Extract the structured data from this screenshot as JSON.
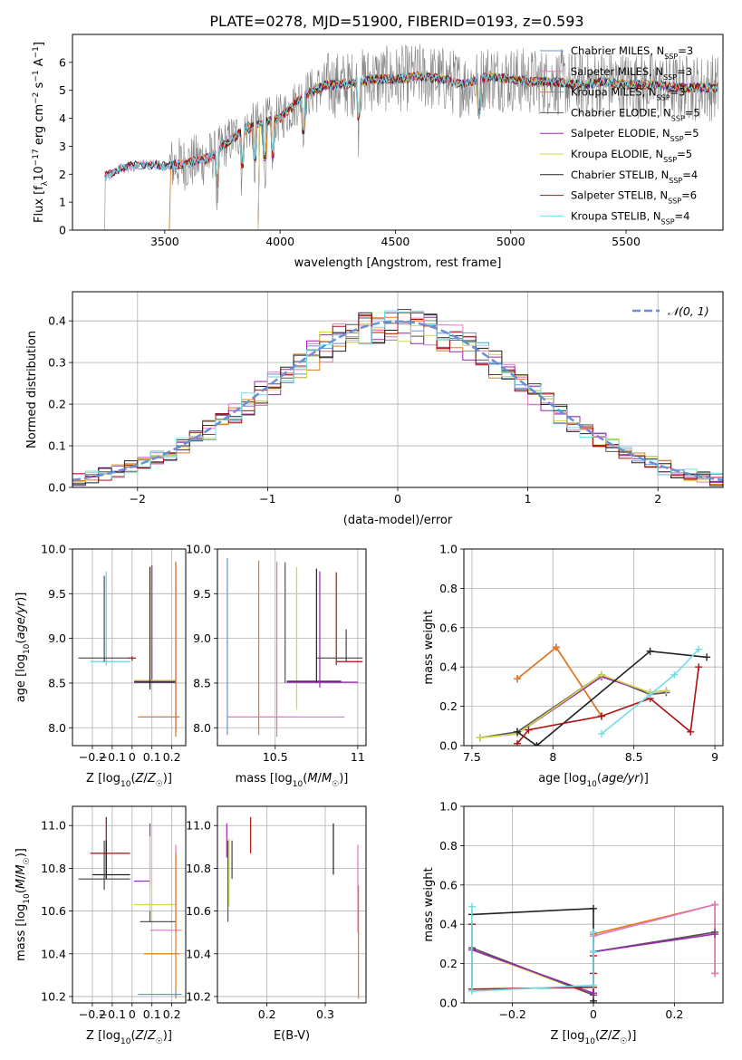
{
  "page_title": "PLATE=0278, MJD=51900, FIBERID=0193, z=0.593",
  "series_colors": [
    "#6a8fd8",
    "#e377c2",
    "#e07b1c",
    "#555555",
    "#9a27b0",
    "#cfd84a",
    "#222222",
    "#b01010",
    "#73dcea"
  ],
  "legend_entries": [
    {
      "base": "Chabrier MILES, N",
      "sub": "SSP",
      "suffix": "=3"
    },
    {
      "base": "Salpeter MILES, N",
      "sub": "SSP",
      "suffix": "=3"
    },
    {
      "base": "Kroupa MILES, N",
      "sub": "SSP",
      "suffix": "=3"
    },
    {
      "base": "Chabrier ELODIE, N",
      "sub": "SSP",
      "suffix": "=5"
    },
    {
      "base": "Salpeter ELODIE, N",
      "sub": "SSP",
      "suffix": "=5"
    },
    {
      "base": "Kroupa ELODIE, N",
      "sub": "SSP",
      "suffix": "=5"
    },
    {
      "base": "Chabrier STELIB, N",
      "sub": "SSP",
      "suffix": "=4"
    },
    {
      "base": "Salpeter STELIB, N",
      "sub": "SSP",
      "suffix": "=6"
    },
    {
      "base": "Kroupa STELIB, N",
      "sub": "SSP",
      "suffix": "=4"
    }
  ],
  "chart_data": [
    {
      "id": "spectrum",
      "type": "line",
      "xlabel": "wavelength [Angstrom, rest frame]",
      "ylabel": "Flux [f_λ 10^-17 erg cm^-2 s^-1 A^-1]",
      "xlim": [
        3100,
        5920
      ],
      "ylim": [
        0,
        7
      ],
      "xticks": [
        3500,
        4000,
        4500,
        5000,
        5500
      ],
      "yticks": [
        0,
        1,
        2,
        3,
        4,
        5,
        6
      ],
      "grid": false,
      "legend": "upper right",
      "approx_continuum": [
        [
          3240,
          1.9
        ],
        [
          3300,
          2.2
        ],
        [
          3400,
          2.35
        ],
        [
          3500,
          2.3
        ],
        [
          3600,
          2.4
        ],
        [
          3700,
          2.6
        ],
        [
          3780,
          3.2
        ],
        [
          3850,
          3.6
        ],
        [
          3950,
          3.9
        ],
        [
          4000,
          4.0
        ],
        [
          4100,
          4.8
        ],
        [
          4200,
          5.2
        ],
        [
          4300,
          5.2
        ],
        [
          4400,
          5.4
        ],
        [
          4500,
          5.4
        ],
        [
          4600,
          5.5
        ],
        [
          4700,
          5.4
        ],
        [
          4800,
          5.2
        ],
        [
          4900,
          5.5
        ],
        [
          5000,
          5.4
        ],
        [
          5100,
          5.3
        ],
        [
          5200,
          5.3
        ],
        [
          5300,
          5.2
        ],
        [
          5400,
          5.3
        ],
        [
          5500,
          5.2
        ],
        [
          5600,
          5.2
        ],
        [
          5700,
          5.1
        ],
        [
          5800,
          5.1
        ]
      ]
    },
    {
      "id": "residuals",
      "type": "histogram",
      "xlabel": "(data-model)/error",
      "ylabel": "Normed distribution",
      "xlim": [
        -2.5,
        2.5
      ],
      "ylim": [
        0,
        0.47
      ],
      "xticks": [
        -2,
        -1,
        0,
        1,
        2
      ],
      "yticks": [
        0.0,
        0.1,
        0.2,
        0.3,
        0.4
      ],
      "grid": true,
      "legend": "upper right",
      "gaussian_label": "N(0,1)",
      "bins": 50
    },
    {
      "id": "age_vs_Z",
      "type": "errorbar",
      "xlabel": "Z [log10(Z/Z☉)]",
      "ylabel": "age  [log10(age/yr)]",
      "xlim": [
        -0.3,
        0.27
      ],
      "ylim": [
        7.8,
        10.0
      ],
      "xticks": [
        -0.2,
        -0.1,
        0.0,
        0.1,
        0.2
      ],
      "yticks": [
        8.0,
        8.5,
        9.0,
        9.5,
        10.0
      ],
      "grid": true,
      "points": [
        {
          "s": 8,
          "x": -0.13,
          "xlo": -0.21,
          "xhi": -0.01,
          "y": 8.74,
          "ylo": 8.7,
          "yhi": 9.74
        },
        {
          "s": 8,
          "x": -0.13,
          "xlo": -0.21,
          "xhi": -0.01,
          "y": 8.74,
          "ylo": 8.7,
          "yhi": 9.75
        },
        {
          "s": 9,
          "x": -0.14,
          "xlo": -0.27,
          "xhi": -0.01,
          "y": 8.78,
          "ylo": 8.74,
          "yhi": 9.7
        },
        {
          "s": 7,
          "x": 0.0,
          "xlo": -0.02,
          "xhi": 0.02,
          "y": 8.78,
          "ylo": 8.75,
          "yhi": 8.8
        },
        {
          "s": 4,
          "x": 0.1,
          "xlo": 0.01,
          "xhi": 0.22,
          "y": 8.52,
          "ylo": 8.5,
          "yhi": 9.82
        },
        {
          "s": 5,
          "x": 0.09,
          "xlo": 0.01,
          "xhi": 0.22,
          "y": 8.53,
          "ylo": 8.45,
          "yhi": 9.8
        },
        {
          "s": 6,
          "x": 0.09,
          "xlo": 0.01,
          "xhi": 0.22,
          "y": 8.51,
          "ylo": 8.43,
          "yhi": 9.8
        },
        {
          "s": 0,
          "x": 0.22,
          "xlo": 0.03,
          "xhi": 0.24,
          "y": 8.12,
          "ylo": 7.95,
          "yhi": 9.83
        },
        {
          "s": 1,
          "x": 0.22,
          "xlo": 0.03,
          "xhi": 0.24,
          "y": 8.12,
          "ylo": 7.95,
          "yhi": 9.85
        },
        {
          "s": 2,
          "x": 0.22,
          "xlo": 0.03,
          "xhi": 0.24,
          "y": 8.12,
          "ylo": 7.9,
          "yhi": 9.86
        }
      ]
    },
    {
      "id": "age_vs_mass",
      "type": "errorbar",
      "xlabel": "mass [log10(M/M☉)]",
      "ylabel": "",
      "xlim": [
        10.15,
        11.05
      ],
      "ylim": [
        7.8,
        10.0
      ],
      "xticks": [
        10.5,
        11.0
      ],
      "yticks": [
        8.0,
        8.5,
        9.0,
        9.5,
        10.0
      ],
      "grid": true,
      "points": [
        {
          "s": 0,
          "x": 10.21,
          "xlo": 10.21,
          "xhi": 10.21,
          "y": 8.12,
          "ylo": 7.92,
          "yhi": 9.9
        },
        {
          "s": 2,
          "x": 10.4,
          "xlo": 10.21,
          "xhi": 10.63,
          "y": 8.12,
          "ylo": 7.92,
          "yhi": 9.87
        },
        {
          "s": 1,
          "x": 10.51,
          "xlo": 10.21,
          "xhi": 10.92,
          "y": 8.12,
          "ylo": 7.9,
          "yhi": 9.86
        },
        {
          "s": 3,
          "x": 10.56,
          "xlo": 10.56,
          "xhi": 10.56,
          "y": 9.0,
          "ylo": 8.5,
          "yhi": 9.85
        },
        {
          "s": 5,
          "x": 10.63,
          "xlo": 10.63,
          "xhi": 10.63,
          "y": 9.0,
          "ylo": 8.2,
          "yhi": 9.8
        },
        {
          "s": 6,
          "x": 10.75,
          "xlo": 10.57,
          "xhi": 10.9,
          "y": 8.52,
          "ylo": 8.5,
          "yhi": 9.78
        },
        {
          "s": 4,
          "x": 10.77,
          "xlo": 10.57,
          "xhi": 11.0,
          "y": 8.51,
          "ylo": 8.45,
          "yhi": 9.75
        },
        {
          "s": 7,
          "x": 10.87,
          "xlo": 10.87,
          "xhi": 11.03,
          "y": 8.74,
          "ylo": 8.7,
          "yhi": 9.74
        },
        {
          "s": 9,
          "x": 10.93,
          "xlo": 10.75,
          "xhi": 11.03,
          "y": 8.78,
          "ylo": 8.74,
          "yhi": 9.1
        }
      ]
    },
    {
      "id": "massweight_vs_age",
      "type": "line",
      "xlabel": "age  [log10(age/yr)]",
      "ylabel": "mass weight",
      "xlim": [
        7.45,
        9.05
      ],
      "ylim": [
        0,
        1.0
      ],
      "xticks": [
        7.5,
        8.0,
        8.5,
        9.0
      ],
      "yticks": [
        0.0,
        0.2,
        0.4,
        0.6,
        0.8,
        1.0
      ],
      "grid": true,
      "series": [
        {
          "s": 0,
          "x": [
            7.78,
            8.02,
            8.3
          ],
          "y": [
            0.34,
            0.5,
            0.15
          ]
        },
        {
          "s": 1,
          "x": [
            7.78,
            8.02,
            8.3
          ],
          "y": [
            0.34,
            0.5,
            0.15
          ]
        },
        {
          "s": 2,
          "x": [
            7.78,
            8.02,
            8.3
          ],
          "y": [
            0.34,
            0.5,
            0.15
          ]
        },
        {
          "s": 3,
          "x": [
            7.55,
            7.78,
            8.3,
            8.6,
            8.7
          ],
          "y": [
            0.04,
            0.07,
            0.36,
            0.26,
            0.27
          ]
        },
        {
          "s": 4,
          "x": [
            7.55,
            7.78,
            8.3,
            8.6,
            8.7
          ],
          "y": [
            0.04,
            0.06,
            0.35,
            0.27,
            0.28
          ]
        },
        {
          "s": 5,
          "x": [
            7.55,
            7.78,
            8.3,
            8.6,
            8.7
          ],
          "y": [
            0.04,
            0.06,
            0.36,
            0.27,
            0.28
          ]
        },
        {
          "s": 6,
          "x": [
            7.78,
            7.9,
            8.6,
            8.95
          ],
          "y": [
            0.07,
            0.0,
            0.48,
            0.45
          ]
        },
        {
          "s": 7,
          "x": [
            7.78,
            7.85,
            8.3,
            8.6,
            8.85,
            8.9
          ],
          "y": [
            0.01,
            0.08,
            0.15,
            0.24,
            0.07,
            0.4
          ]
        },
        {
          "s": 8,
          "x": [
            8.3,
            8.6,
            8.75,
            8.9
          ],
          "y": [
            0.06,
            0.26,
            0.36,
            0.49
          ]
        }
      ]
    },
    {
      "id": "mass_vs_Z",
      "type": "errorbar",
      "xlabel": "Z [log10(Z/Z☉)]",
      "ylabel": "mass [log10(M/M☉)]",
      "xlim": [
        -0.3,
        0.27
      ],
      "ylim": [
        10.17,
        11.09
      ],
      "xticks": [
        -0.2,
        -0.1,
        0.0,
        0.1,
        0.2
      ],
      "yticks": [
        10.2,
        10.4,
        10.6,
        10.8,
        11.0
      ],
      "grid": true,
      "points": [
        {
          "s": 8,
          "x": -0.13,
          "xlo": -0.21,
          "xhi": -0.01,
          "y": 10.87,
          "ylo": 10.75,
          "yhi": 11.04
        },
        {
          "s": 7,
          "x": -0.13,
          "xlo": -0.21,
          "xhi": -0.01,
          "y": 10.87,
          "ylo": 10.75,
          "yhi": 11.04
        },
        {
          "s": 6,
          "x": -0.13,
          "xlo": -0.2,
          "xhi": -0.01,
          "y": 10.77,
          "ylo": 10.75,
          "yhi": 10.93
        },
        {
          "s": 9,
          "x": -0.14,
          "xlo": -0.27,
          "xhi": -0.01,
          "y": 10.75,
          "ylo": 10.7,
          "yhi": 10.93
        },
        {
          "s": 4,
          "x": 0.09,
          "xlo": 0.01,
          "xhi": 0.09,
          "y": 10.74,
          "ylo": 10.72,
          "yhi": 11.01
        },
        {
          "s": 5,
          "x": 0.09,
          "xlo": 0.01,
          "xhi": 0.22,
          "y": 10.63,
          "ylo": 10.55,
          "yhi": 10.95
        },
        {
          "s": 3,
          "x": 0.09,
          "xlo": 0.04,
          "xhi": 0.22,
          "y": 10.55,
          "ylo": 10.55,
          "yhi": 10.6
        },
        {
          "s": 1,
          "x": 0.22,
          "xlo": 0.09,
          "xhi": 0.25,
          "y": 10.51,
          "ylo": 10.5,
          "yhi": 10.91
        },
        {
          "s": 2,
          "x": 0.22,
          "xlo": 0.06,
          "xhi": 0.24,
          "y": 10.4,
          "ylo": 10.19,
          "yhi": 10.87
        },
        {
          "s": 0,
          "x": 0.22,
          "xlo": 0.03,
          "xhi": 0.25,
          "y": 10.21,
          "ylo": 10.2,
          "yhi": 10.22
        }
      ]
    },
    {
      "id": "mass_vs_ebv",
      "type": "errorbar",
      "xlabel": "E(B-V)",
      "ylabel": "",
      "xlim": [
        0.115,
        0.37
      ],
      "ylim": [
        10.17,
        11.09
      ],
      "xticks": [
        0.2,
        0.3
      ],
      "yticks": [
        10.2,
        10.4,
        10.6,
        10.8,
        11.0
      ],
      "grid": true,
      "points": [
        {
          "s": 4,
          "x": 0.131,
          "ylo": 10.85,
          "yhi": 11.01
        },
        {
          "s": 3,
          "x": 0.133,
          "ylo": 10.55,
          "yhi": 10.93
        },
        {
          "s": 5,
          "x": 0.135,
          "ylo": 10.62,
          "yhi": 10.94
        },
        {
          "s": 9,
          "x": 0.14,
          "ylo": 10.75,
          "yhi": 10.93
        },
        {
          "s": 7,
          "x": 0.172,
          "ylo": 10.87,
          "yhi": 11.04
        },
        {
          "s": 6,
          "x": 0.314,
          "ylo": 10.77,
          "yhi": 11.01
        },
        {
          "s": 1,
          "x": 0.356,
          "ylo": 10.5,
          "yhi": 10.91
        },
        {
          "s": 2,
          "x": 0.357,
          "ylo": 10.19,
          "yhi": 10.72
        }
      ]
    },
    {
      "id": "massweight_vs_Z",
      "type": "line",
      "xlabel": "Z [log10(Z/Z☉)]",
      "ylabel": "mass weight",
      "xlim": [
        -0.32,
        0.32
      ],
      "ylim": [
        0,
        1.0
      ],
      "xticks": [
        -0.2,
        0.0,
        0.2
      ],
      "yticks": [
        0.0,
        0.2,
        0.4,
        0.6,
        0.8,
        1.0
      ],
      "grid": true,
      "series": [
        {
          "s": 2,
          "x": [
            0.0,
            0.0,
            0.3,
            0.3
          ],
          "y": [
            0.0,
            0.35,
            0.5,
            0.15
          ]
        },
        {
          "s": 1,
          "x": [
            0.0,
            0.0,
            0.3,
            0.3
          ],
          "y": [
            0.0,
            0.34,
            0.5,
            0.15
          ]
        },
        {
          "s": 6,
          "x": [
            -0.3,
            0.0,
            0.0
          ],
          "y": [
            0.45,
            0.48,
            0.01
          ]
        },
        {
          "s": 5,
          "x": [
            -0.3,
            0.0,
            0.0,
            0.3
          ],
          "y": [
            0.27,
            0.04,
            0.26,
            0.36
          ]
        },
        {
          "s": 3,
          "x": [
            -0.3,
            0.0,
            0.0,
            0.3
          ],
          "y": [
            0.28,
            0.04,
            0.26,
            0.36
          ]
        },
        {
          "s": 4,
          "x": [
            -0.3,
            0.0,
            0.0,
            0.3
          ],
          "y": [
            0.27,
            0.05,
            0.26,
            0.35
          ]
        },
        {
          "s": 7,
          "x": [
            -0.3,
            -0.3,
            0.0,
            0.0,
            0.0
          ],
          "y": [
            0.4,
            0.07,
            0.08,
            0.24,
            0.15
          ]
        },
        {
          "s": 8,
          "x": [
            -0.3,
            -0.3,
            0.0,
            0.0,
            0.0
          ],
          "y": [
            0.49,
            0.06,
            0.09,
            0.26,
            0.36
          ]
        }
      ]
    }
  ]
}
